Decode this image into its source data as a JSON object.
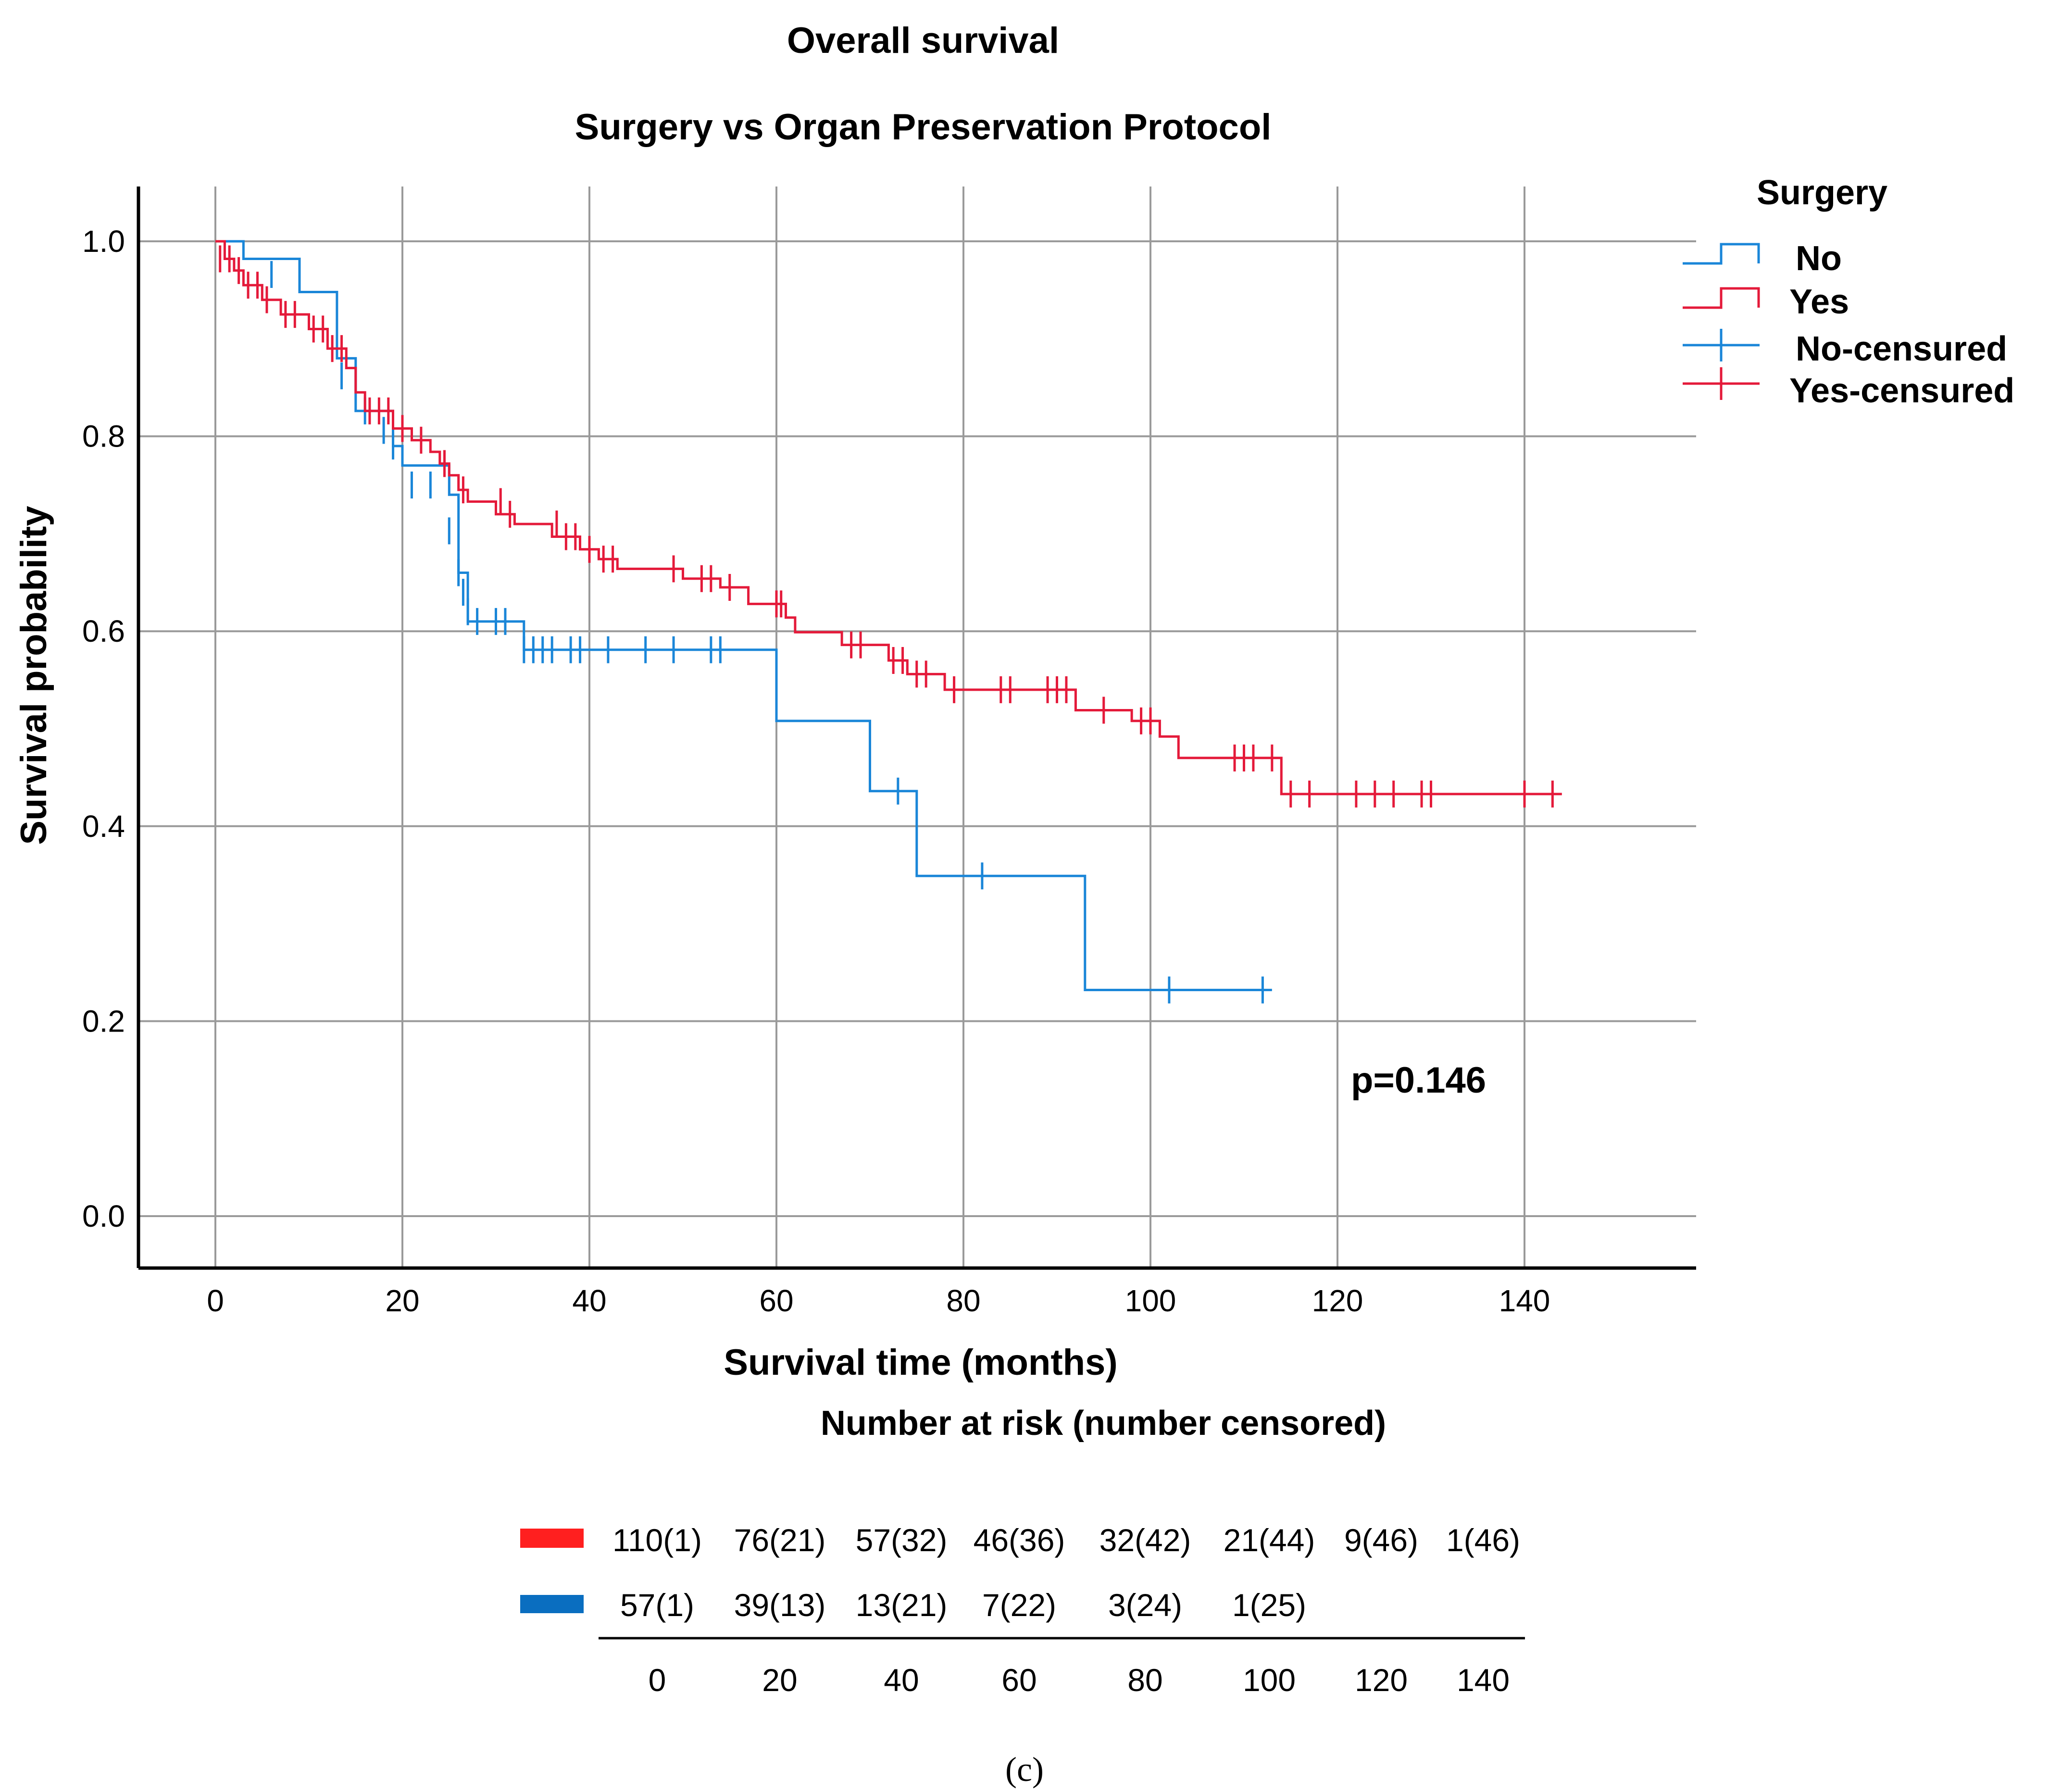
{
  "colors": {
    "no": "#1a86d8",
    "yes": "#e41a3a",
    "risk_yes_bar": "#ff1f1f",
    "risk_no_bar": "#0a6ec0",
    "grid": "#9a9a9a",
    "axis": "#000000"
  },
  "chart_data": {
    "type": "line",
    "subtype": "kaplan-meier",
    "title": "Overall survival",
    "subtitle": "Surgery vs Organ Preservation Protocol",
    "xlabel": "Survival time (months)",
    "ylabel": "Survival probability",
    "xlim": [
      -8,
      158
    ],
    "ylim": [
      -0.055,
      1.055
    ],
    "x_ticks": [
      0,
      20,
      40,
      60,
      80,
      100,
      120,
      140
    ],
    "x_tick_labels": [
      "0",
      "20",
      "40",
      "60",
      "80",
      "100",
      "120",
      "140"
    ],
    "y_ticks": [
      0.0,
      0.2,
      0.4,
      0.6,
      0.8,
      1.0
    ],
    "y_tick_labels": [
      "0.0",
      "0.2",
      "0.4",
      "0.6",
      "0.8",
      "1.0"
    ],
    "grid": true,
    "annotation": "p=0.146",
    "legend": {
      "title": "Surgery",
      "placement": "top-right outside",
      "entries": [
        "No",
        "Yes",
        "No-censured",
        "Yes-censured"
      ]
    },
    "series": [
      {
        "name": "No",
        "color_key": "no",
        "steps": [
          [
            0,
            1.0
          ],
          [
            3,
            1.0
          ],
          [
            3,
            0.982
          ],
          [
            9,
            0.982
          ],
          [
            9,
            0.948
          ],
          [
            13,
            0.948
          ],
          [
            13,
            0.88
          ],
          [
            15,
            0.88
          ],
          [
            15,
            0.826
          ],
          [
            19,
            0.826
          ],
          [
            19,
            0.79
          ],
          [
            20,
            0.79
          ],
          [
            20,
            0.77
          ],
          [
            25,
            0.77
          ],
          [
            25,
            0.74
          ],
          [
            26,
            0.74
          ],
          [
            26,
            0.66
          ],
          [
            27,
            0.66
          ],
          [
            27,
            0.61
          ],
          [
            33,
            0.61
          ],
          [
            33,
            0.581
          ],
          [
            60,
            0.581
          ],
          [
            60,
            0.508
          ],
          [
            70,
            0.508
          ],
          [
            70,
            0.436
          ],
          [
            75,
            0.436
          ],
          [
            75,
            0.349
          ],
          [
            93,
            0.349
          ],
          [
            93,
            0.232
          ],
          [
            113,
            0.232
          ]
        ],
        "censored": [
          [
            6,
            0.966
          ],
          [
            13.5,
            0.862
          ],
          [
            16,
            0.826
          ],
          [
            18,
            0.806
          ],
          [
            19,
            0.79
          ],
          [
            21,
            0.75
          ],
          [
            23,
            0.75
          ],
          [
            25,
            0.703
          ],
          [
            26,
            0.66
          ],
          [
            26.5,
            0.64
          ],
          [
            27,
            0.62
          ],
          [
            28,
            0.61
          ],
          [
            30,
            0.61
          ],
          [
            31,
            0.61
          ],
          [
            33,
            0.581
          ],
          [
            34,
            0.581
          ],
          [
            35,
            0.581
          ],
          [
            36,
            0.581
          ],
          [
            38,
            0.581
          ],
          [
            39,
            0.581
          ],
          [
            42,
            0.581
          ],
          [
            46,
            0.581
          ],
          [
            49,
            0.581
          ],
          [
            53,
            0.581
          ],
          [
            54,
            0.581
          ],
          [
            73,
            0.436
          ],
          [
            82,
            0.349
          ],
          [
            102,
            0.232
          ],
          [
            112,
            0.232
          ]
        ]
      },
      {
        "name": "Yes",
        "color_key": "yes",
        "steps": [
          [
            0,
            1.0
          ],
          [
            1,
            1.0
          ],
          [
            1,
            0.982
          ],
          [
            2,
            0.982
          ],
          [
            2,
            0.97
          ],
          [
            3,
            0.97
          ],
          [
            3,
            0.955
          ],
          [
            5,
            0.955
          ],
          [
            5,
            0.94
          ],
          [
            7,
            0.94
          ],
          [
            7,
            0.925
          ],
          [
            10,
            0.925
          ],
          [
            10,
            0.91
          ],
          [
            12,
            0.91
          ],
          [
            12,
            0.89
          ],
          [
            14,
            0.89
          ],
          [
            14,
            0.87
          ],
          [
            15,
            0.87
          ],
          [
            15,
            0.845
          ],
          [
            16,
            0.845
          ],
          [
            16,
            0.826
          ],
          [
            19,
            0.826
          ],
          [
            19,
            0.808
          ],
          [
            21,
            0.808
          ],
          [
            21,
            0.796
          ],
          [
            23,
            0.796
          ],
          [
            23,
            0.784
          ],
          [
            24,
            0.784
          ],
          [
            24,
            0.772
          ],
          [
            25,
            0.772
          ],
          [
            25,
            0.76
          ],
          [
            26,
            0.76
          ],
          [
            26,
            0.745
          ],
          [
            27,
            0.745
          ],
          [
            27,
            0.733
          ],
          [
            30,
            0.733
          ],
          [
            30,
            0.72
          ],
          [
            32,
            0.72
          ],
          [
            32,
            0.71
          ],
          [
            36,
            0.71
          ],
          [
            36,
            0.697
          ],
          [
            39,
            0.697
          ],
          [
            39,
            0.684
          ],
          [
            41,
            0.684
          ],
          [
            41,
            0.674
          ],
          [
            43,
            0.674
          ],
          [
            43,
            0.664
          ],
          [
            50,
            0.664
          ],
          [
            50,
            0.654
          ],
          [
            54,
            0.654
          ],
          [
            54,
            0.645
          ],
          [
            57,
            0.645
          ],
          [
            57,
            0.628
          ],
          [
            61,
            0.628
          ],
          [
            61,
            0.614
          ],
          [
            62,
            0.614
          ],
          [
            62,
            0.599
          ],
          [
            67,
            0.599
          ],
          [
            67,
            0.586
          ],
          [
            72,
            0.586
          ],
          [
            72,
            0.57
          ],
          [
            74,
            0.57
          ],
          [
            74,
            0.556
          ],
          [
            78,
            0.556
          ],
          [
            78,
            0.54
          ],
          [
            92,
            0.54
          ],
          [
            92,
            0.519
          ],
          [
            98,
            0.519
          ],
          [
            98,
            0.508
          ],
          [
            101,
            0.508
          ],
          [
            101,
            0.492
          ],
          [
            103,
            0.492
          ],
          [
            103,
            0.47
          ],
          [
            114,
            0.47
          ],
          [
            114,
            0.433
          ],
          [
            144,
            0.433
          ]
        ],
        "censored": [
          [
            0.5,
            0.982
          ],
          [
            1.5,
            0.982
          ],
          [
            2.5,
            0.97
          ],
          [
            3.5,
            0.955
          ],
          [
            4.5,
            0.955
          ],
          [
            5.5,
            0.94
          ],
          [
            7.5,
            0.925
          ],
          [
            8.5,
            0.925
          ],
          [
            10.5,
            0.91
          ],
          [
            11.5,
            0.91
          ],
          [
            12.5,
            0.89
          ],
          [
            13.5,
            0.89
          ],
          [
            16.5,
            0.826
          ],
          [
            17.5,
            0.826
          ],
          [
            18.5,
            0.826
          ],
          [
            20,
            0.808
          ],
          [
            22,
            0.796
          ],
          [
            24.5,
            0.772
          ],
          [
            26.5,
            0.745
          ],
          [
            30.5,
            0.733
          ],
          [
            31.5,
            0.72
          ],
          [
            36.5,
            0.71
          ],
          [
            37.5,
            0.697
          ],
          [
            38.5,
            0.697
          ],
          [
            40,
            0.684
          ],
          [
            41.5,
            0.674
          ],
          [
            42.5,
            0.674
          ],
          [
            49,
            0.664
          ],
          [
            52,
            0.654
          ],
          [
            53,
            0.654
          ],
          [
            55,
            0.645
          ],
          [
            60,
            0.628
          ],
          [
            60.5,
            0.628
          ],
          [
            68,
            0.586
          ],
          [
            69,
            0.586
          ],
          [
            72.5,
            0.57
          ],
          [
            73.5,
            0.57
          ],
          [
            75,
            0.556
          ],
          [
            76,
            0.556
          ],
          [
            79,
            0.54
          ],
          [
            84,
            0.54
          ],
          [
            85,
            0.54
          ],
          [
            89,
            0.54
          ],
          [
            90,
            0.54
          ],
          [
            91,
            0.54
          ],
          [
            95,
            0.519
          ],
          [
            99,
            0.508
          ],
          [
            100,
            0.508
          ],
          [
            109,
            0.47
          ],
          [
            110,
            0.47
          ],
          [
            111,
            0.47
          ],
          [
            113,
            0.47
          ],
          [
            115,
            0.433
          ],
          [
            117,
            0.433
          ],
          [
            122,
            0.433
          ],
          [
            124,
            0.433
          ],
          [
            126,
            0.433
          ],
          [
            129,
            0.433
          ],
          [
            130,
            0.433
          ],
          [
            140,
            0.433
          ],
          [
            143,
            0.433
          ]
        ]
      }
    ],
    "risk_table": {
      "title": "Number at risk (number censored)",
      "times": [
        "0",
        "20",
        "40",
        "60",
        "80",
        "100",
        "120",
        "140"
      ],
      "rows": [
        {
          "group": "Yes",
          "color_key": "risk_yes_bar",
          "values": [
            "110(1)",
            "76(21)",
            "57(32)",
            "46(36)",
            "32(42)",
            "21(44)",
            "9(46)",
            "1(46)"
          ]
        },
        {
          "group": "No",
          "color_key": "risk_no_bar",
          "values": [
            "57(1)",
            "39(13)",
            "13(21)",
            "7(22)",
            "3(24)",
            "1(25)",
            "",
            ""
          ]
        }
      ]
    },
    "panel_label": "(c)"
  }
}
